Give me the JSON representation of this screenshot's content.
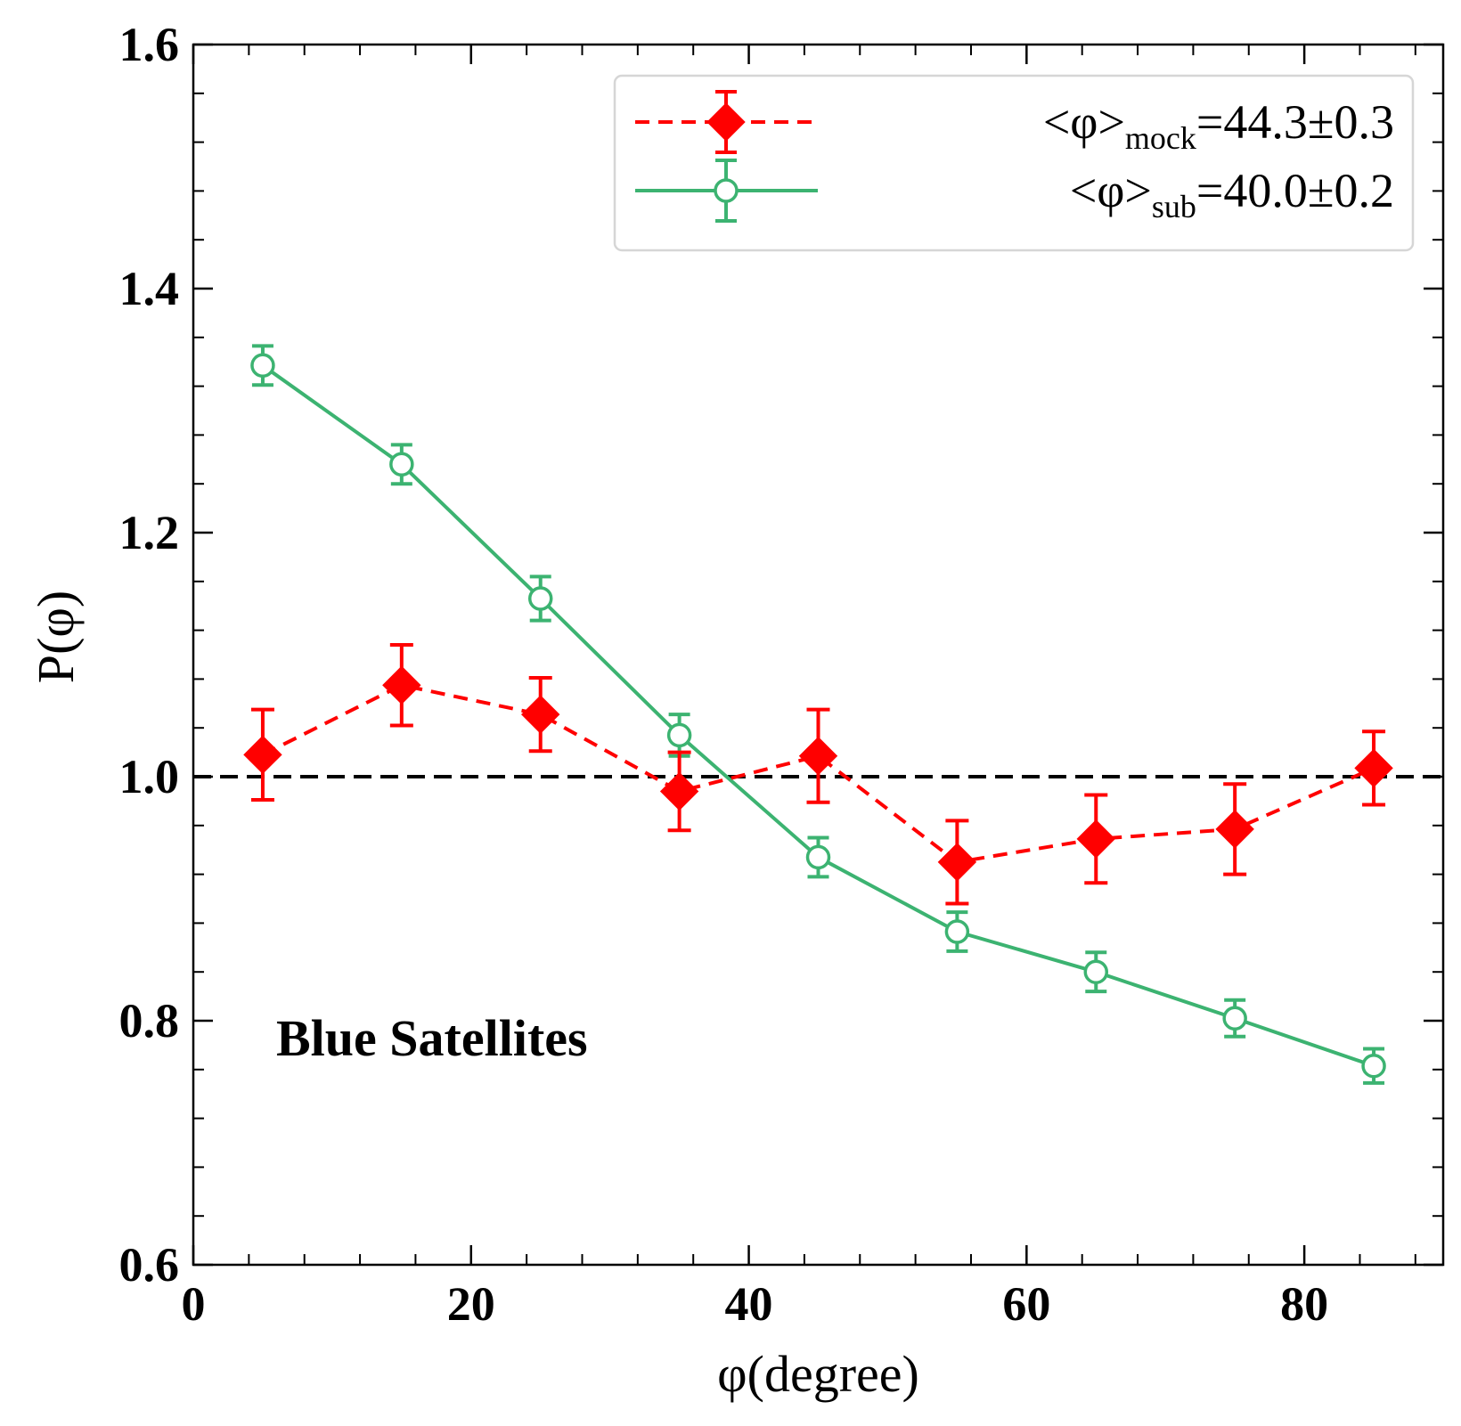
{
  "chart_data": {
    "type": "line",
    "title": "",
    "xlabel": "φ(degree)",
    "ylabel": "P(φ)",
    "xlim": [
      0,
      90
    ],
    "ylim": [
      0.6,
      1.6
    ],
    "x_ticks": [
      0,
      20,
      40,
      60,
      80
    ],
    "x_tick_labels": [
      "0",
      "20",
      "40",
      "60",
      "80"
    ],
    "y_ticks": [
      0.6,
      0.8,
      1.0,
      1.2,
      1.4,
      1.6
    ],
    "y_tick_labels": [
      "0.6",
      "0.8",
      "1.0",
      "1.2",
      "1.4",
      "1.6"
    ],
    "grid": false,
    "legend_position": "top-right",
    "annotation": "Blue Satellites",
    "reference_line": {
      "y": 1.0,
      "style": "dashed",
      "color": "#000000"
    },
    "x": [
      5,
      15,
      25,
      35,
      45,
      55,
      65,
      75,
      85
    ],
    "series": [
      {
        "name": "mock",
        "legend_label": {
          "prefix": "<φ>",
          "sub": "mock",
          "suffix": "=44.3±0.3"
        },
        "color": "#ff0000",
        "line_style": "dashed",
        "marker": "diamond-filled",
        "values": [
          1.018,
          1.075,
          1.051,
          0.988,
          1.017,
          0.93,
          0.949,
          0.957,
          1.007
        ],
        "errors": [
          0.037,
          0.033,
          0.03,
          0.032,
          0.038,
          0.034,
          0.036,
          0.037,
          0.03
        ]
      },
      {
        "name": "sub",
        "legend_label": {
          "prefix": "<φ>",
          "sub": "sub",
          "suffix": "=40.0±0.2"
        },
        "color": "#3cb371",
        "line_style": "solid",
        "marker": "circle-open",
        "values": [
          1.337,
          1.256,
          1.146,
          1.034,
          0.934,
          0.873,
          0.84,
          0.802,
          0.763
        ],
        "errors": [
          0.016,
          0.016,
          0.018,
          0.017,
          0.016,
          0.016,
          0.016,
          0.015,
          0.014
        ]
      }
    ]
  }
}
